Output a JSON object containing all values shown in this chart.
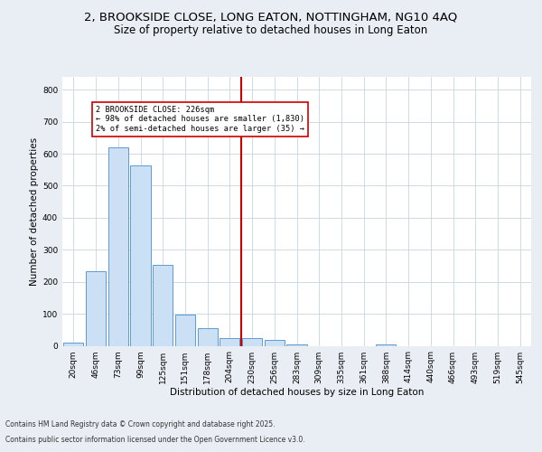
{
  "title_line1": "2, BROOKSIDE CLOSE, LONG EATON, NOTTINGHAM, NG10 4AQ",
  "title_line2": "Size of property relative to detached houses in Long Eaton",
  "xlabel": "Distribution of detached houses by size in Long Eaton",
  "ylabel": "Number of detached properties",
  "categories": [
    "20sqm",
    "46sqm",
    "73sqm",
    "99sqm",
    "125sqm",
    "151sqm",
    "178sqm",
    "204sqm",
    "230sqm",
    "256sqm",
    "283sqm",
    "309sqm",
    "335sqm",
    "361sqm",
    "388sqm",
    "414sqm",
    "440sqm",
    "466sqm",
    "493sqm",
    "519sqm",
    "545sqm"
  ],
  "values": [
    10,
    232,
    620,
    562,
    252,
    97,
    55,
    25,
    25,
    18,
    5,
    0,
    0,
    0,
    5,
    0,
    0,
    0,
    0,
    0,
    0
  ],
  "bar_color": "#cce0f5",
  "bar_edge_color": "#5b9bd5",
  "vline_x_idx": 8,
  "vline_color": "#cc0000",
  "annotation_text": "2 BROOKSIDE CLOSE: 226sqm\n← 98% of detached houses are smaller (1,830)\n2% of semi-detached houses are larger (35) →",
  "annotation_box_color": "#ffffff",
  "annotation_box_edge": "#cc0000",
  "ylim": [
    0,
    840
  ],
  "yticks": [
    0,
    100,
    200,
    300,
    400,
    500,
    600,
    700,
    800
  ],
  "footer_line1": "Contains HM Land Registry data © Crown copyright and database right 2025.",
  "footer_line2": "Contains public sector information licensed under the Open Government Licence v3.0.",
  "bg_color": "#e8eef4",
  "plot_bg_color": "#ffffff",
  "grid_color": "#c8d4e0",
  "title_fontsize": 9.5,
  "subtitle_fontsize": 8.5,
  "axis_label_fontsize": 7.5,
  "tick_fontsize": 6.5,
  "footer_fontsize": 5.5
}
